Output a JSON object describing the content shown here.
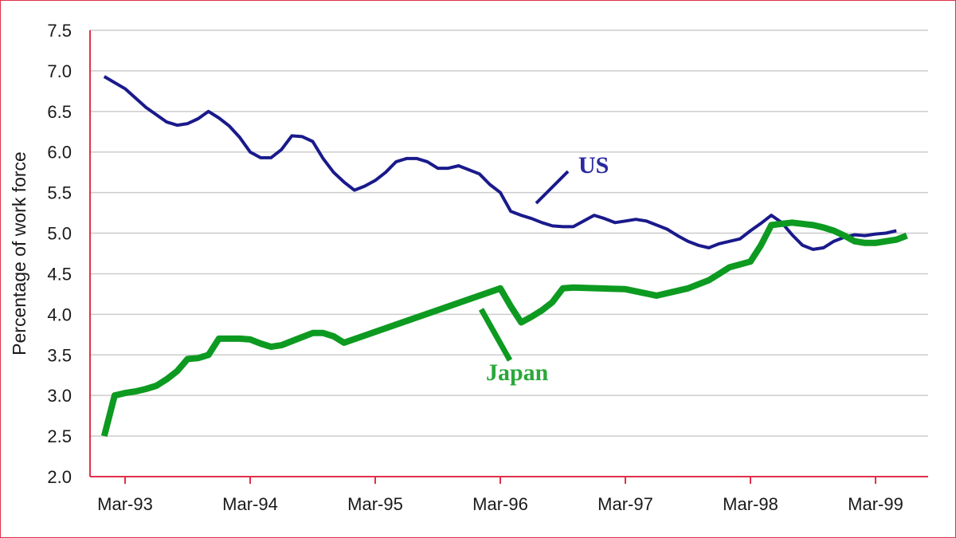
{
  "chart_data": {
    "type": "line",
    "title": "",
    "xlabel": "",
    "ylabel": "Percentage of work force",
    "ylim": [
      2.0,
      7.5
    ],
    "y_ticks": [
      "2.0",
      "2.5",
      "3.0",
      "3.5",
      "4.0",
      "4.5",
      "5.0",
      "5.5",
      "6.0",
      "6.5",
      "7.0",
      "7.5"
    ],
    "x_ticks": [
      "Mar-93",
      "Mar-94",
      "Mar-95",
      "Mar-96",
      "Mar-97",
      "Mar-98",
      "Mar-99"
    ],
    "grid": true,
    "legend": "inline labels",
    "series": [
      {
        "name": "US",
        "color": "#1a1a8c",
        "label_color": "#2a2aa0",
        "points": [
          [
            "Jan-93",
            6.93
          ],
          [
            "Mar-93",
            6.78
          ],
          [
            "May-93",
            6.55
          ],
          [
            "Jul-93",
            6.37
          ],
          [
            "Aug-93",
            6.33
          ],
          [
            "Sep-93",
            6.35
          ],
          [
            "Oct-93",
            6.41
          ],
          [
            "Nov-93",
            6.5
          ],
          [
            "Dec-93",
            6.42
          ],
          [
            "Jan-94",
            6.32
          ],
          [
            "Feb-94",
            6.18
          ],
          [
            "Mar-94",
            6.0
          ],
          [
            "Apr-94",
            5.93
          ],
          [
            "May-94",
            5.93
          ],
          [
            "Jun-94",
            6.03
          ],
          [
            "Jul-94",
            6.2
          ],
          [
            "Aug-94",
            6.19
          ],
          [
            "Sep-94",
            6.13
          ],
          [
            "Oct-94",
            5.92
          ],
          [
            "Nov-94",
            5.75
          ],
          [
            "Dec-94",
            5.63
          ],
          [
            "Jan-95",
            5.53
          ],
          [
            "Feb-95",
            5.58
          ],
          [
            "Mar-95",
            5.65
          ],
          [
            "Apr-95",
            5.75
          ],
          [
            "May-95",
            5.88
          ],
          [
            "Jun-95",
            5.92
          ],
          [
            "Jul-95",
            5.92
          ],
          [
            "Aug-95",
            5.88
          ],
          [
            "Sep-95",
            5.8
          ],
          [
            "Oct-95",
            5.8
          ],
          [
            "Nov-95",
            5.83
          ],
          [
            "Dec-95",
            5.78
          ],
          [
            "Jan-96",
            5.73
          ],
          [
            "Feb-96",
            5.6
          ],
          [
            "Mar-96",
            5.5
          ],
          [
            "Apr-96",
            5.27
          ],
          [
            "May-96",
            5.22
          ],
          [
            "Jun-96",
            5.18
          ],
          [
            "Jul-96",
            5.13
          ],
          [
            "Aug-96",
            5.09
          ],
          [
            "Sep-96",
            5.08
          ],
          [
            "Oct-96",
            5.08
          ],
          [
            "Nov-96",
            5.15
          ],
          [
            "Dec-96",
            5.22
          ],
          [
            "Jan-97",
            5.18
          ],
          [
            "Feb-97",
            5.13
          ],
          [
            "Mar-97",
            5.15
          ],
          [
            "Apr-97",
            5.17
          ],
          [
            "May-97",
            5.15
          ],
          [
            "Jun-97",
            5.1
          ],
          [
            "Jul-97",
            5.05
          ],
          [
            "Aug-97",
            4.97
          ],
          [
            "Sep-97",
            4.9
          ],
          [
            "Oct-97",
            4.85
          ],
          [
            "Nov-97",
            4.82
          ],
          [
            "Dec-97",
            4.87
          ],
          [
            "Feb-98",
            4.93
          ],
          [
            "Mar-98",
            5.03
          ],
          [
            "Apr-98",
            5.12
          ],
          [
            "May-98",
            5.22
          ],
          [
            "Jun-98",
            5.13
          ],
          [
            "Jul-98",
            4.98
          ],
          [
            "Aug-98",
            4.85
          ],
          [
            "Sep-98",
            4.8
          ],
          [
            "Oct-98",
            4.82
          ],
          [
            "Nov-98",
            4.9
          ],
          [
            "Dec-98",
            4.95
          ],
          [
            "Jan-99",
            4.98
          ],
          [
            "Feb-99",
            4.97
          ],
          [
            "Mar-99",
            4.99
          ],
          [
            "Apr-99",
            5.0
          ],
          [
            "May-99",
            5.03
          ]
        ]
      },
      {
        "name": "Japan",
        "color": "#0d9a20",
        "label_color": "#2aa83a",
        "points": [
          [
            "Jan-93",
            2.5
          ],
          [
            "Feb-93",
            3.0
          ],
          [
            "Mar-93",
            3.03
          ],
          [
            "Apr-93",
            3.05
          ],
          [
            "May-93",
            3.08
          ],
          [
            "Jun-93",
            3.12
          ],
          [
            "Jul-93",
            3.2
          ],
          [
            "Aug-93",
            3.3
          ],
          [
            "Sep-93",
            3.45
          ],
          [
            "Oct-93",
            3.46
          ],
          [
            "Nov-93",
            3.5
          ],
          [
            "Dec-93",
            3.7
          ],
          [
            "Jan-94",
            3.7
          ],
          [
            "Feb-94",
            3.7
          ],
          [
            "Mar-94",
            3.69
          ],
          [
            "Apr-94",
            3.64
          ],
          [
            "May-94",
            3.6
          ],
          [
            "Jun-94",
            3.62
          ],
          [
            "Jul-94",
            3.67
          ],
          [
            "Aug-94",
            3.72
          ],
          [
            "Sep-94",
            3.77
          ],
          [
            "Oct-94",
            3.77
          ],
          [
            "Nov-94",
            3.73
          ],
          [
            "Dec-94",
            3.65
          ],
          [
            "Mar-96",
            4.32
          ],
          [
            "Apr-96",
            4.1
          ],
          [
            "May-96",
            3.9
          ],
          [
            "Jun-96",
            3.97
          ],
          [
            "Jul-96",
            4.05
          ],
          [
            "Aug-96",
            4.15
          ],
          [
            "Sep-96",
            4.32
          ],
          [
            "Oct-96",
            4.33
          ],
          [
            "Mar-97",
            4.31
          ],
          [
            "Jun-97",
            4.23
          ],
          [
            "Sep-97",
            4.32
          ],
          [
            "Nov-97",
            4.42
          ],
          [
            "Dec-97",
            4.5
          ],
          [
            "Jan-98",
            4.58
          ],
          [
            "Mar-98",
            4.65
          ],
          [
            "Apr-98",
            4.85
          ],
          [
            "May-98",
            5.1
          ],
          [
            "Jul-98",
            5.13
          ],
          [
            "Sep-98",
            5.1
          ],
          [
            "Oct-98",
            5.07
          ],
          [
            "Nov-98",
            5.03
          ],
          [
            "Dec-98",
            4.97
          ],
          [
            "Jan-99",
            4.9
          ],
          [
            "Feb-99",
            4.88
          ],
          [
            "Mar-99",
            4.88
          ],
          [
            "Apr-99",
            4.9
          ],
          [
            "May-99",
            4.92
          ],
          [
            "Jun-99",
            4.97
          ]
        ]
      }
    ]
  },
  "labels": {
    "us": "US",
    "japan": "Japan"
  },
  "colors": {
    "frame": "#e0304a",
    "grid": "#cccccc",
    "axis": "#e0304a"
  }
}
